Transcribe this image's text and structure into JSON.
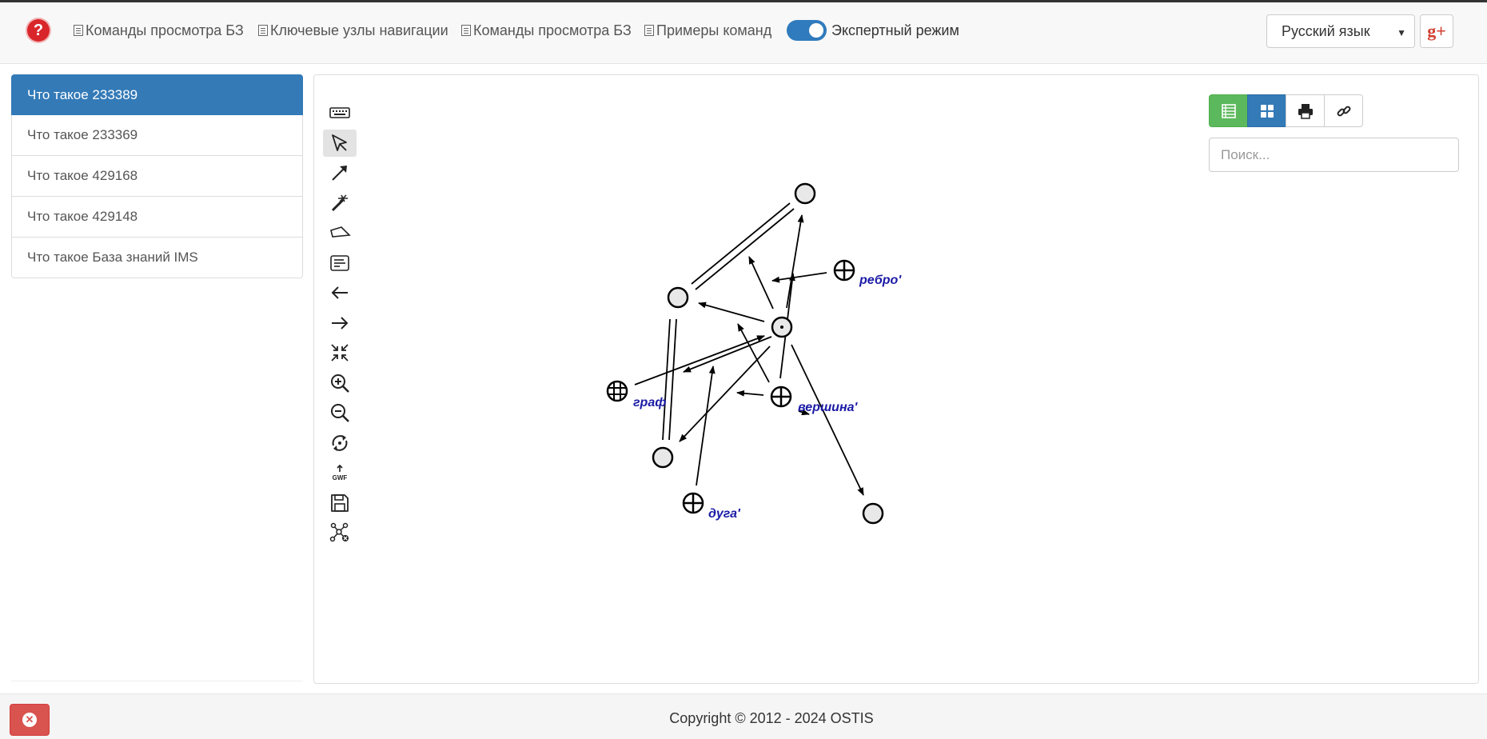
{
  "header": {
    "help_icon": "question-circle-icon",
    "nav_links": [
      {
        "label": "Команды просмотра БЗ",
        "icon": "document-icon"
      },
      {
        "label": "Ключевые узлы навигации",
        "icon": "document-icon"
      },
      {
        "label": "Команды просмотра БЗ",
        "icon": "document-icon"
      },
      {
        "label": "Примеры команд",
        "icon": "document-icon"
      }
    ],
    "expert_mode": {
      "label": "Экспертный режим",
      "enabled": true
    },
    "language": {
      "selected": "Русский язык"
    },
    "gplus_label": "g+"
  },
  "sidebar": {
    "items": [
      {
        "label": "Что такое 233389",
        "active": true
      },
      {
        "label": "Что такое 233369",
        "active": false
      },
      {
        "label": "Что такое 429168",
        "active": false
      },
      {
        "label": "Что такое 429148",
        "active": false
      },
      {
        "label": "Что такое База знаний IMS",
        "active": false
      }
    ]
  },
  "editor": {
    "tools": [
      "keyboard-icon",
      "select-pointer-icon",
      "arc-tool-icon",
      "bus-tool-icon",
      "contour-tool-icon",
      "link-tool-icon",
      "undo-arrow-icon",
      "redo-arrow-icon",
      "fit-center-icon",
      "zoom-in-icon",
      "zoom-out-icon",
      "refresh-layout-icon",
      "gwf-upload-icon",
      "save-icon",
      "graph-integrate-icon"
    ],
    "view_buttons": [
      "list-view-icon",
      "grid-view-icon",
      "print-icon",
      "link-icon"
    ],
    "search_placeholder": "Поиск...",
    "graph_labels": {
      "edge": "ребро'",
      "vertex": "вершина'",
      "graph": "граф",
      "arc": "дуга'"
    }
  },
  "footer": {
    "copyright": "Copyright © 2012 - 2024 OSTIS",
    "close_icon": "close-circle-icon"
  },
  "colors": {
    "accent": "#337ab7",
    "success": "#5cb85c",
    "danger": "#d9534f",
    "graph_label": "#1a1aa6"
  }
}
